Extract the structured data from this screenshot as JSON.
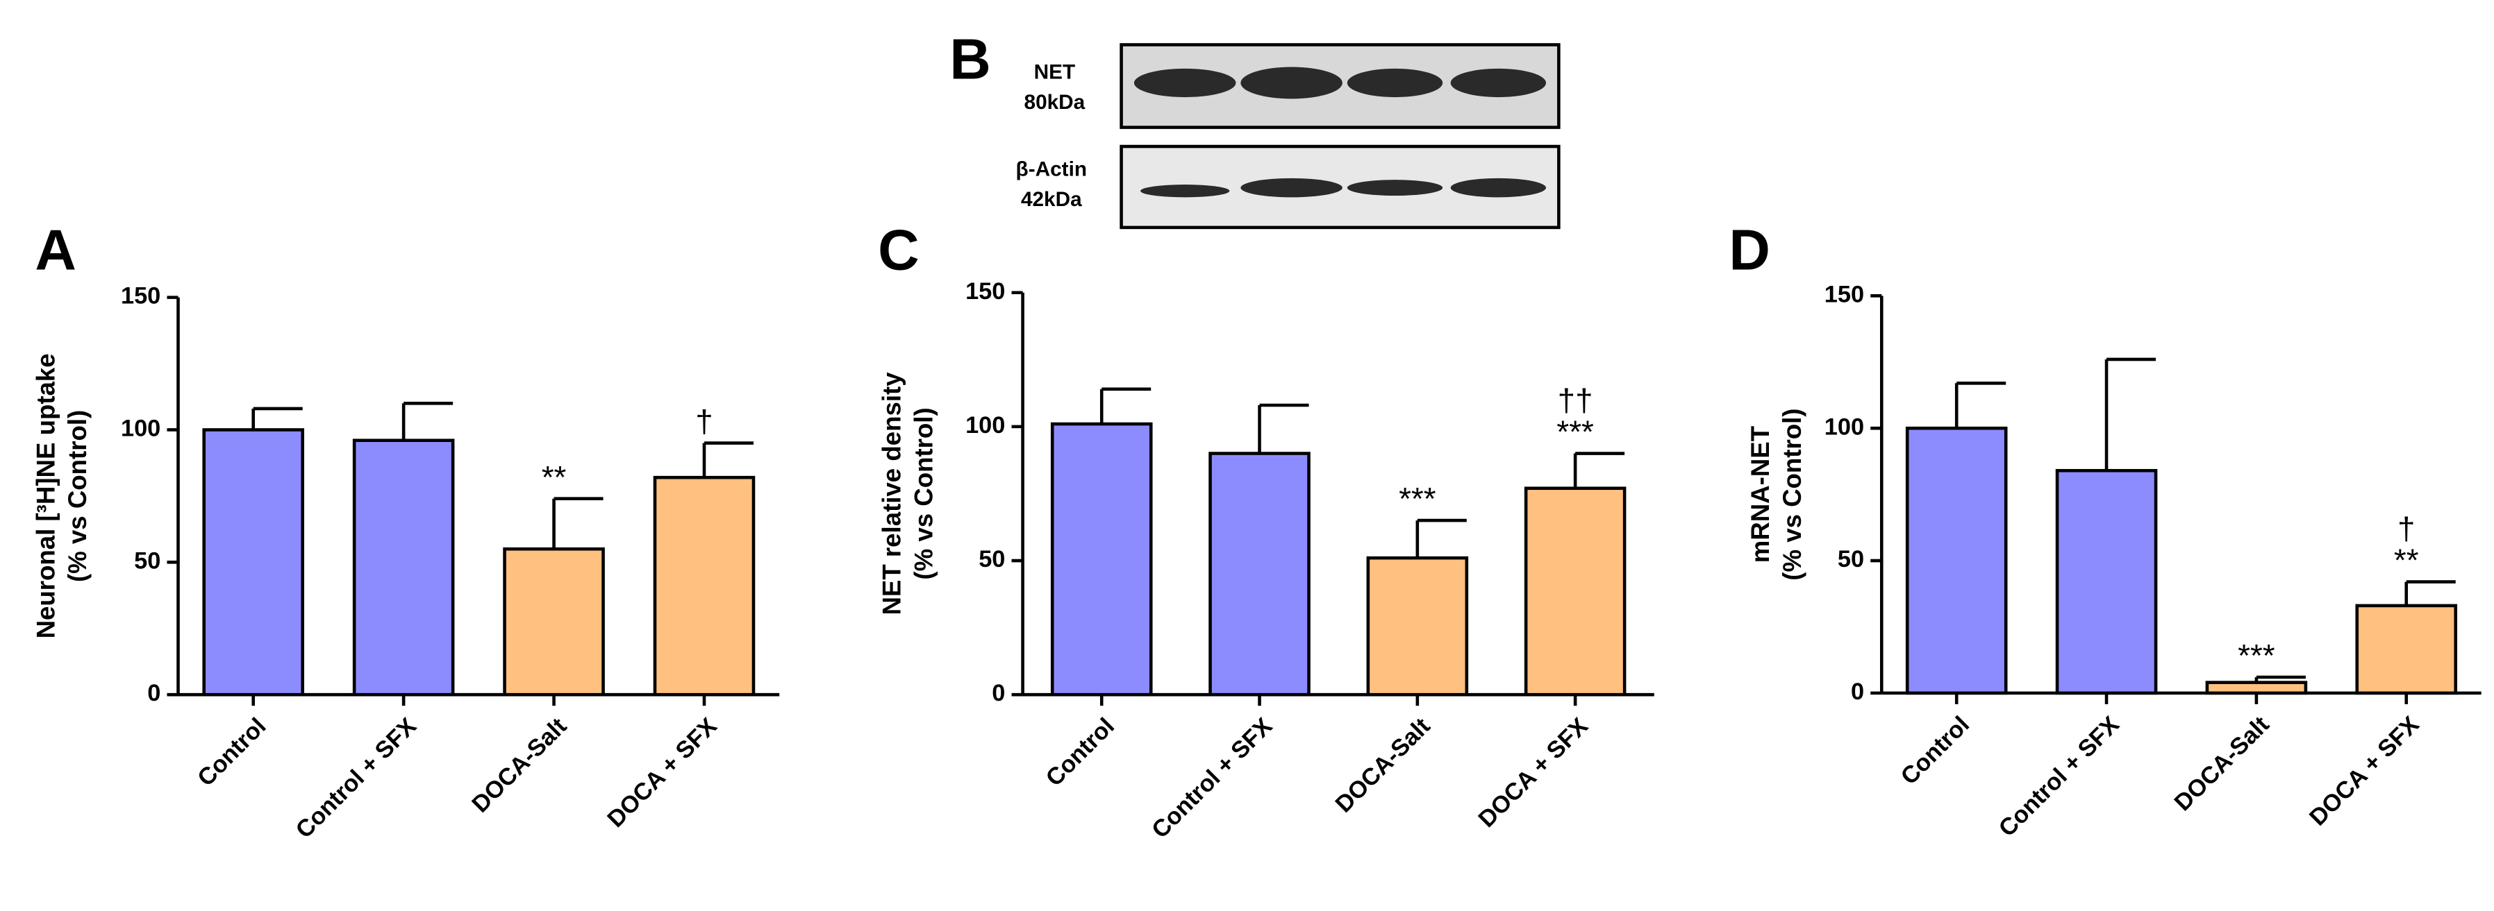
{
  "blot": {
    "panel_label": "B",
    "rows": [
      {
        "name": "NET",
        "size": "80kDa"
      },
      {
        "name": "β-Actin",
        "size": "42kDa"
      }
    ]
  },
  "chart_data": [
    {
      "type": "bar",
      "panel_label": "A",
      "ylabel": [
        "Neuronal [³H]NE uptake",
        "(% vs Control)"
      ],
      "categories": [
        "Control",
        "Control + SFX",
        "DOCA-Salt",
        "DOCA + SFX"
      ],
      "values": [
        100,
        96,
        55,
        82
      ],
      "errors": [
        8,
        14,
        19,
        13
      ],
      "colors": [
        "#8c8cff",
        "#8c8cff",
        "#ffc080",
        "#ffc080"
      ],
      "annotations": [
        null,
        null,
        [
          "**"
        ],
        [
          "†"
        ]
      ],
      "ylim": [
        0,
        150
      ],
      "yticks": [
        0,
        50,
        100,
        150
      ]
    },
    {
      "type": "bar",
      "panel_label": "C",
      "ylabel": [
        "NET relative density",
        "(% vs Control)"
      ],
      "categories": [
        "Control",
        "Control + SFX",
        "DOCA-Salt",
        "DOCA + SFX"
      ],
      "values": [
        101,
        90,
        51,
        77
      ],
      "errors": [
        13,
        18,
        14,
        13
      ],
      "colors": [
        "#8c8cff",
        "#8c8cff",
        "#ffc080",
        "#ffc080"
      ],
      "annotations": [
        null,
        null,
        [
          "***"
        ],
        [
          "††",
          "***"
        ]
      ],
      "ylim": [
        0,
        150
      ],
      "yticks": [
        0,
        50,
        100,
        150
      ]
    },
    {
      "type": "bar",
      "panel_label": "D",
      "ylabel": [
        "mRNA-NET",
        "(% vs Control)"
      ],
      "categories": [
        "Control",
        "Control + SFX",
        "DOCA-Salt",
        "DOCA + SFX"
      ],
      "values": [
        100,
        84,
        4,
        33
      ],
      "errors": [
        17,
        42,
        2,
        9
      ],
      "colors": [
        "#8c8cff",
        "#8c8cff",
        "#ffc080",
        "#ffc080"
      ],
      "annotations": [
        null,
        null,
        [
          "***"
        ],
        [
          "†",
          "**"
        ]
      ],
      "ylim": [
        0,
        150
      ],
      "yticks": [
        0,
        50,
        100,
        150
      ]
    }
  ]
}
